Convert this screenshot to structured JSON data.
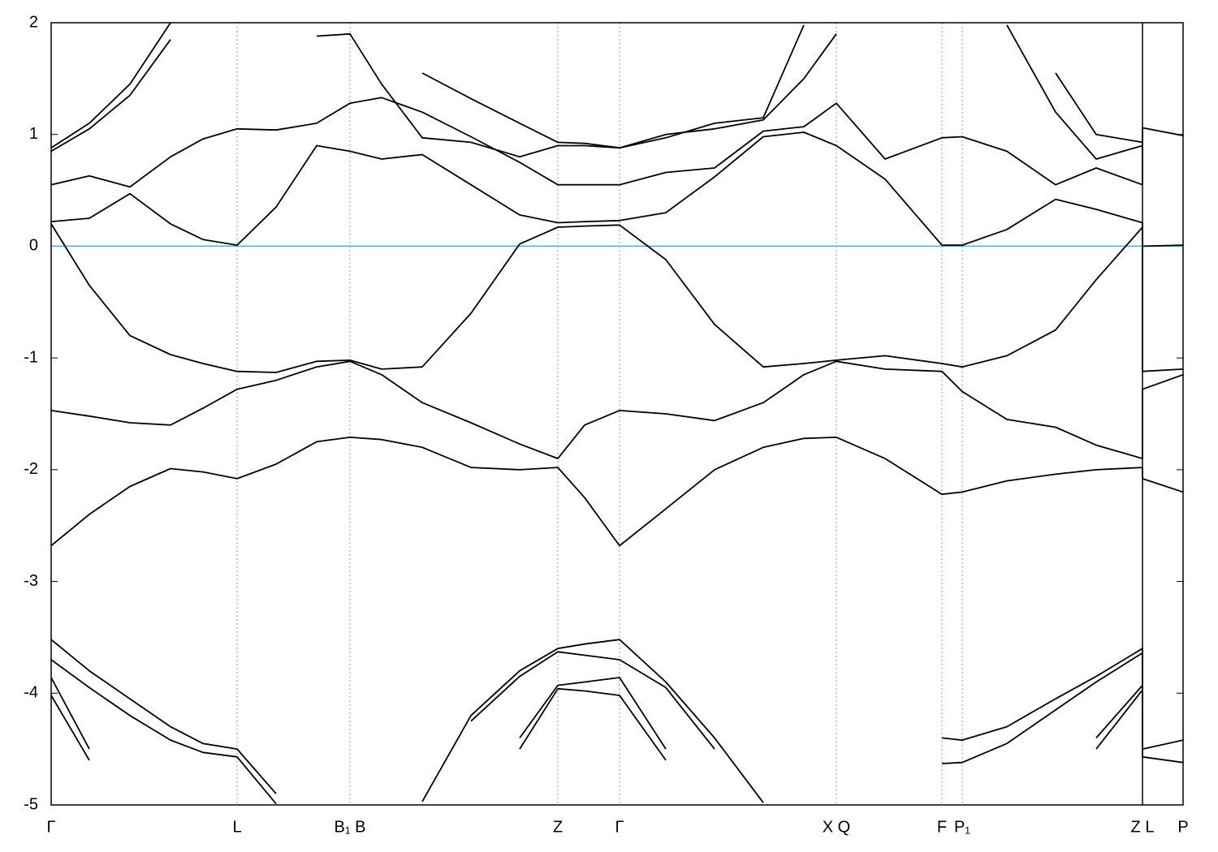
{
  "chart_data": {
    "type": "line",
    "x": [
      0,
      0.47,
      0.97,
      1.47,
      1.87,
      2.29,
      2.77,
      3.27,
      3.68,
      4.07,
      4.57,
      5.17,
      5.77,
      6.24,
      6.57,
      7.0,
      7.57,
      8.17,
      8.77,
      9.27,
      9.67,
      10.27,
      10.97,
      11.22,
      11.77,
      12.37,
      12.87,
      13.44,
      13.44,
      13.94
    ],
    "xlim": [
      0,
      13.94
    ],
    "xticks": [
      {
        "value": 0,
        "label": "Γ"
      },
      {
        "value": 2.29,
        "label": "L"
      },
      {
        "value": 3.68,
        "label": "B₁ B"
      },
      {
        "value": 6.24,
        "label": "Z"
      },
      {
        "value": 7.0,
        "label": "Γ"
      },
      {
        "value": 9.67,
        "label": "X Q"
      },
      {
        "value": 10.97,
        "label": "F"
      },
      {
        "value": 11.22,
        "label": "P₁"
      },
      {
        "value": 13.44,
        "label": "Z L",
        "line": "solid"
      },
      {
        "value": 13.94,
        "label": "P"
      }
    ],
    "ylim": [
      -5,
      2
    ],
    "yticks": [
      -5,
      -4,
      -3,
      -2,
      -1,
      0,
      1,
      2
    ],
    "grid": true,
    "color": "#000000",
    "hline": {
      "y": 0,
      "color": "#56a9c8"
    },
    "series": [
      {
        "values": [
          -2.68,
          -2.4,
          -2.15,
          -1.99,
          -2.02,
          -2.08,
          -1.95,
          -1.75,
          -1.71,
          -1.73,
          -1.8,
          -1.98,
          -2.0,
          -1.98,
          -2.25,
          -2.68,
          -2.35,
          -2.0,
          -1.8,
          -1.72,
          -1.71,
          -1.9,
          -2.22,
          -2.2,
          -2.1,
          -2.04,
          -2.0,
          -1.98,
          -2.08,
          -2.2
        ]
      },
      {
        "values": [
          -1.47,
          -1.52,
          -1.58,
          -1.6,
          -1.45,
          -1.28,
          -1.2,
          -1.08,
          -1.03,
          -1.15,
          -1.4,
          -1.58,
          -1.77,
          -1.9,
          -1.6,
          -1.47,
          -1.5,
          -1.56,
          -1.4,
          -1.15,
          -1.03,
          -1.1,
          -1.12,
          -1.3,
          -1.55,
          -1.62,
          -1.78,
          -1.9,
          -1.28,
          -1.15
        ]
      },
      {
        "values": [
          0.2,
          -0.35,
          -0.8,
          -0.97,
          -1.05,
          -1.12,
          -1.13,
          -1.03,
          -1.02,
          -1.1,
          -1.08,
          -0.6,
          0.02,
          0.17,
          0.18,
          0.19,
          -0.12,
          -0.7,
          -1.08,
          -1.05,
          -1.02,
          -0.98,
          -1.05,
          -1.08,
          -0.98,
          -0.75,
          -0.3,
          0.17,
          -1.12,
          -1.1
        ]
      },
      {
        "values": [
          0.22,
          0.25,
          0.47,
          0.2,
          0.06,
          0.01,
          0.35,
          0.9,
          0.85,
          0.78,
          0.82,
          0.55,
          0.28,
          0.21,
          0.22,
          0.23,
          0.3,
          0.62,
          0.98,
          1.02,
          0.9,
          0.6,
          0.01,
          0.01,
          0.15,
          0.42,
          0.33,
          0.21,
          0.0,
          0.01
        ]
      },
      {
        "values": [
          0.55,
          0.63,
          0.53,
          0.8,
          0.96,
          1.05,
          1.04,
          1.1,
          1.28,
          1.33,
          1.2,
          0.98,
          0.75,
          0.55,
          0.55,
          0.55,
          0.66,
          0.7,
          1.03,
          1.07,
          1.28,
          0.78,
          0.97,
          0.98,
          0.85,
          0.55,
          0.7,
          0.55,
          1.06,
          0.99
        ]
      },
      {
        "values": [
          0.85,
          1.05,
          1.35,
          1.85,
          null,
          null,
          null,
          1.88,
          1.9,
          1.45,
          0.97,
          0.93,
          0.8,
          0.9,
          0.9,
          0.88,
          1.0,
          1.05,
          1.13,
          1.5,
          1.9,
          null,
          null,
          null,
          1.98,
          1.2,
          0.78,
          0.9,
          null,
          null
        ]
      },
      {
        "values": [
          0.88,
          1.1,
          1.45,
          2.0,
          null,
          null,
          null,
          null,
          null,
          null,
          1.55,
          1.32,
          1.1,
          0.93,
          0.92,
          0.88,
          0.97,
          1.1,
          1.15,
          1.98,
          null,
          null,
          null,
          null,
          null,
          1.55,
          1.0,
          0.93,
          null,
          null
        ]
      },
      {
        "values": [
          -3.52,
          -3.8,
          -4.05,
          -4.3,
          -4.45,
          -4.5,
          -4.9,
          null,
          null,
          null,
          -4.97,
          -4.2,
          -3.8,
          -3.6,
          -3.56,
          -3.52,
          -3.9,
          -4.4,
          -4.98,
          null,
          null,
          null,
          -4.4,
          -4.42,
          -4.3,
          -4.05,
          -3.85,
          -3.6,
          -4.5,
          -4.42
        ]
      },
      {
        "values": [
          -3.7,
          -3.95,
          -4.2,
          -4.42,
          -4.53,
          -4.57,
          -4.99,
          null,
          null,
          null,
          null,
          -4.25,
          -3.85,
          -3.63,
          -3.66,
          -3.7,
          -3.95,
          -4.5,
          null,
          null,
          null,
          null,
          -4.63,
          -4.62,
          -4.45,
          -4.15,
          -3.9,
          -3.64,
          -4.57,
          -4.62
        ]
      },
      {
        "values": [
          -3.86,
          -4.5,
          null,
          null,
          null,
          null,
          null,
          null,
          null,
          null,
          null,
          null,
          -4.4,
          -3.93,
          -3.9,
          -3.86,
          -4.5,
          null,
          null,
          null,
          null,
          null,
          null,
          null,
          null,
          null,
          -4.4,
          -3.93,
          null,
          null
        ]
      },
      {
        "values": [
          -4.02,
          -4.6,
          null,
          null,
          null,
          null,
          null,
          null,
          null,
          null,
          null,
          null,
          -4.5,
          -3.96,
          -3.98,
          -4.02,
          -4.6,
          null,
          null,
          null,
          null,
          null,
          null,
          null,
          null,
          null,
          -4.5,
          -3.97,
          null,
          null
        ]
      }
    ]
  }
}
